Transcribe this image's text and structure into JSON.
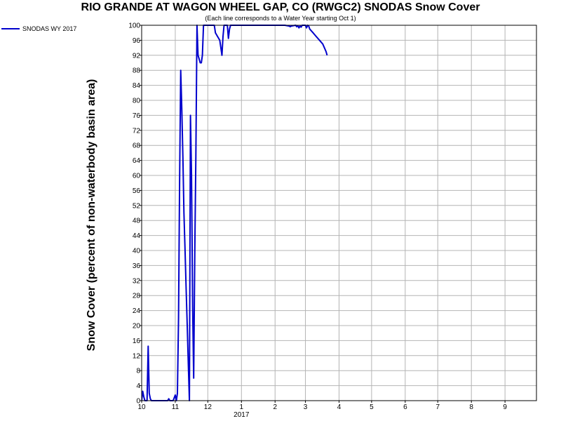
{
  "page": {
    "title": "RIO GRANDE AT WAGON WHEEL GAP, CO (RWGC2) SNODAS Snow Cover",
    "subtitle": "(Each line corresponds to a Water Year starting Oct 1)"
  },
  "chart_data": {
    "type": "line",
    "title": "RIO GRANDE AT WAGON WHEEL GAP, CO (RWGC2) SNODAS Snow Cover",
    "subtitle": "(Each line corresponds to a Water Year starting Oct 1)",
    "xlabel": "",
    "ylabel": "Snow Cover (percent of non-waterbody basin area)",
    "ylim": [
      0,
      100
    ],
    "xlim": [
      "2016-10-01",
      "2017-09-30"
    ],
    "yticks": [
      0,
      4,
      8,
      12,
      16,
      20,
      24,
      28,
      32,
      36,
      40,
      44,
      48,
      52,
      56,
      60,
      64,
      68,
      72,
      76,
      80,
      84,
      88,
      92,
      96,
      100
    ],
    "xticks": [
      {
        "date": "2016-10-01",
        "label": "10"
      },
      {
        "date": "2016-11-01",
        "label": "11"
      },
      {
        "date": "2016-12-01",
        "label": "12"
      },
      {
        "date": "2017-01-01",
        "label": "1"
      },
      {
        "date": "2017-02-01",
        "label": "2"
      },
      {
        "date": "2017-03-01",
        "label": "3"
      },
      {
        "date": "2017-04-01",
        "label": "4"
      },
      {
        "date": "2017-05-01",
        "label": "5"
      },
      {
        "date": "2017-06-01",
        "label": "6"
      },
      {
        "date": "2017-07-01",
        "label": "7"
      },
      {
        "date": "2017-08-01",
        "label": "8"
      },
      {
        "date": "2017-09-01",
        "label": "9"
      }
    ],
    "year_label": "2017",
    "grid": true,
    "legend_position": "top-left",
    "series": [
      {
        "name": "SNODAS WY 2017",
        "color": "#0000cc",
        "x": [
          "2016-10-01",
          "2016-10-02",
          "2016-10-03",
          "2016-10-04",
          "2016-10-05",
          "2016-10-06",
          "2016-10-07",
          "2016-10-08",
          "2016-10-09",
          "2016-10-10",
          "2016-10-11",
          "2016-10-12",
          "2016-10-13",
          "2016-10-14",
          "2016-10-16",
          "2016-10-20",
          "2016-10-25",
          "2016-10-26",
          "2016-10-27",
          "2016-10-28",
          "2016-10-30",
          "2016-11-01",
          "2016-11-02",
          "2016-11-03",
          "2016-11-04",
          "2016-11-05",
          "2016-11-06",
          "2016-11-07",
          "2016-11-08",
          "2016-11-09",
          "2016-11-10",
          "2016-11-11",
          "2016-11-12",
          "2016-11-13",
          "2016-11-14",
          "2016-11-15",
          "2016-11-16",
          "2016-11-17",
          "2016-11-18",
          "2016-11-19",
          "2016-11-20",
          "2016-11-21",
          "2016-11-22",
          "2016-11-23",
          "2016-11-24",
          "2016-11-25",
          "2016-11-26",
          "2016-11-27",
          "2016-11-28",
          "2016-11-29",
          "2016-11-30",
          "2016-12-01",
          "2016-12-02",
          "2016-12-03",
          "2016-12-04",
          "2016-12-05",
          "2016-12-06",
          "2016-12-07",
          "2016-12-08",
          "2016-12-10",
          "2016-12-12",
          "2016-12-14",
          "2016-12-15",
          "2016-12-16",
          "2016-12-17",
          "2016-12-18",
          "2016-12-19",
          "2016-12-20",
          "2016-12-21",
          "2016-12-22",
          "2016-12-25",
          "2016-12-30",
          "2017-01-05",
          "2017-01-15",
          "2017-01-25",
          "2017-02-05",
          "2017-02-10",
          "2017-02-14",
          "2017-02-15",
          "2017-02-16",
          "2017-02-20",
          "2017-02-21",
          "2017-02-22",
          "2017-02-23",
          "2017-02-24",
          "2017-02-25",
          "2017-02-26",
          "2017-03-01",
          "2017-03-02",
          "2017-03-03",
          "2017-03-04",
          "2017-03-05",
          "2017-03-08",
          "2017-03-11",
          "2017-03-14",
          "2017-03-17",
          "2017-03-20",
          "2017-03-21"
        ],
        "y": [
          0,
          2.5,
          1,
          0,
          0,
          0,
          14.5,
          2,
          0.5,
          0,
          0,
          0,
          0,
          0,
          0,
          0,
          0,
          0.5,
          0,
          0,
          0,
          1.5,
          0,
          2,
          22,
          58,
          88,
          78,
          65,
          50,
          40,
          30,
          20,
          10,
          0,
          76,
          60,
          25,
          6,
          40,
          65,
          100,
          92,
          91,
          90,
          90,
          92,
          100,
          100,
          100,
          100,
          100,
          100,
          100,
          100,
          100,
          100,
          100,
          98,
          97,
          96,
          92,
          97,
          100,
          100,
          100,
          100,
          96.5,
          99,
          100,
          100,
          100,
          100,
          100,
          100,
          100,
          100,
          99.8,
          99.6,
          99.8,
          100,
          99.6,
          99.9,
          99.3,
          99.8,
          99.5,
          100,
          100,
          99.3,
          100,
          99.8,
          99,
          98,
          97,
          96,
          95,
          93,
          92
        ]
      }
    ]
  }
}
